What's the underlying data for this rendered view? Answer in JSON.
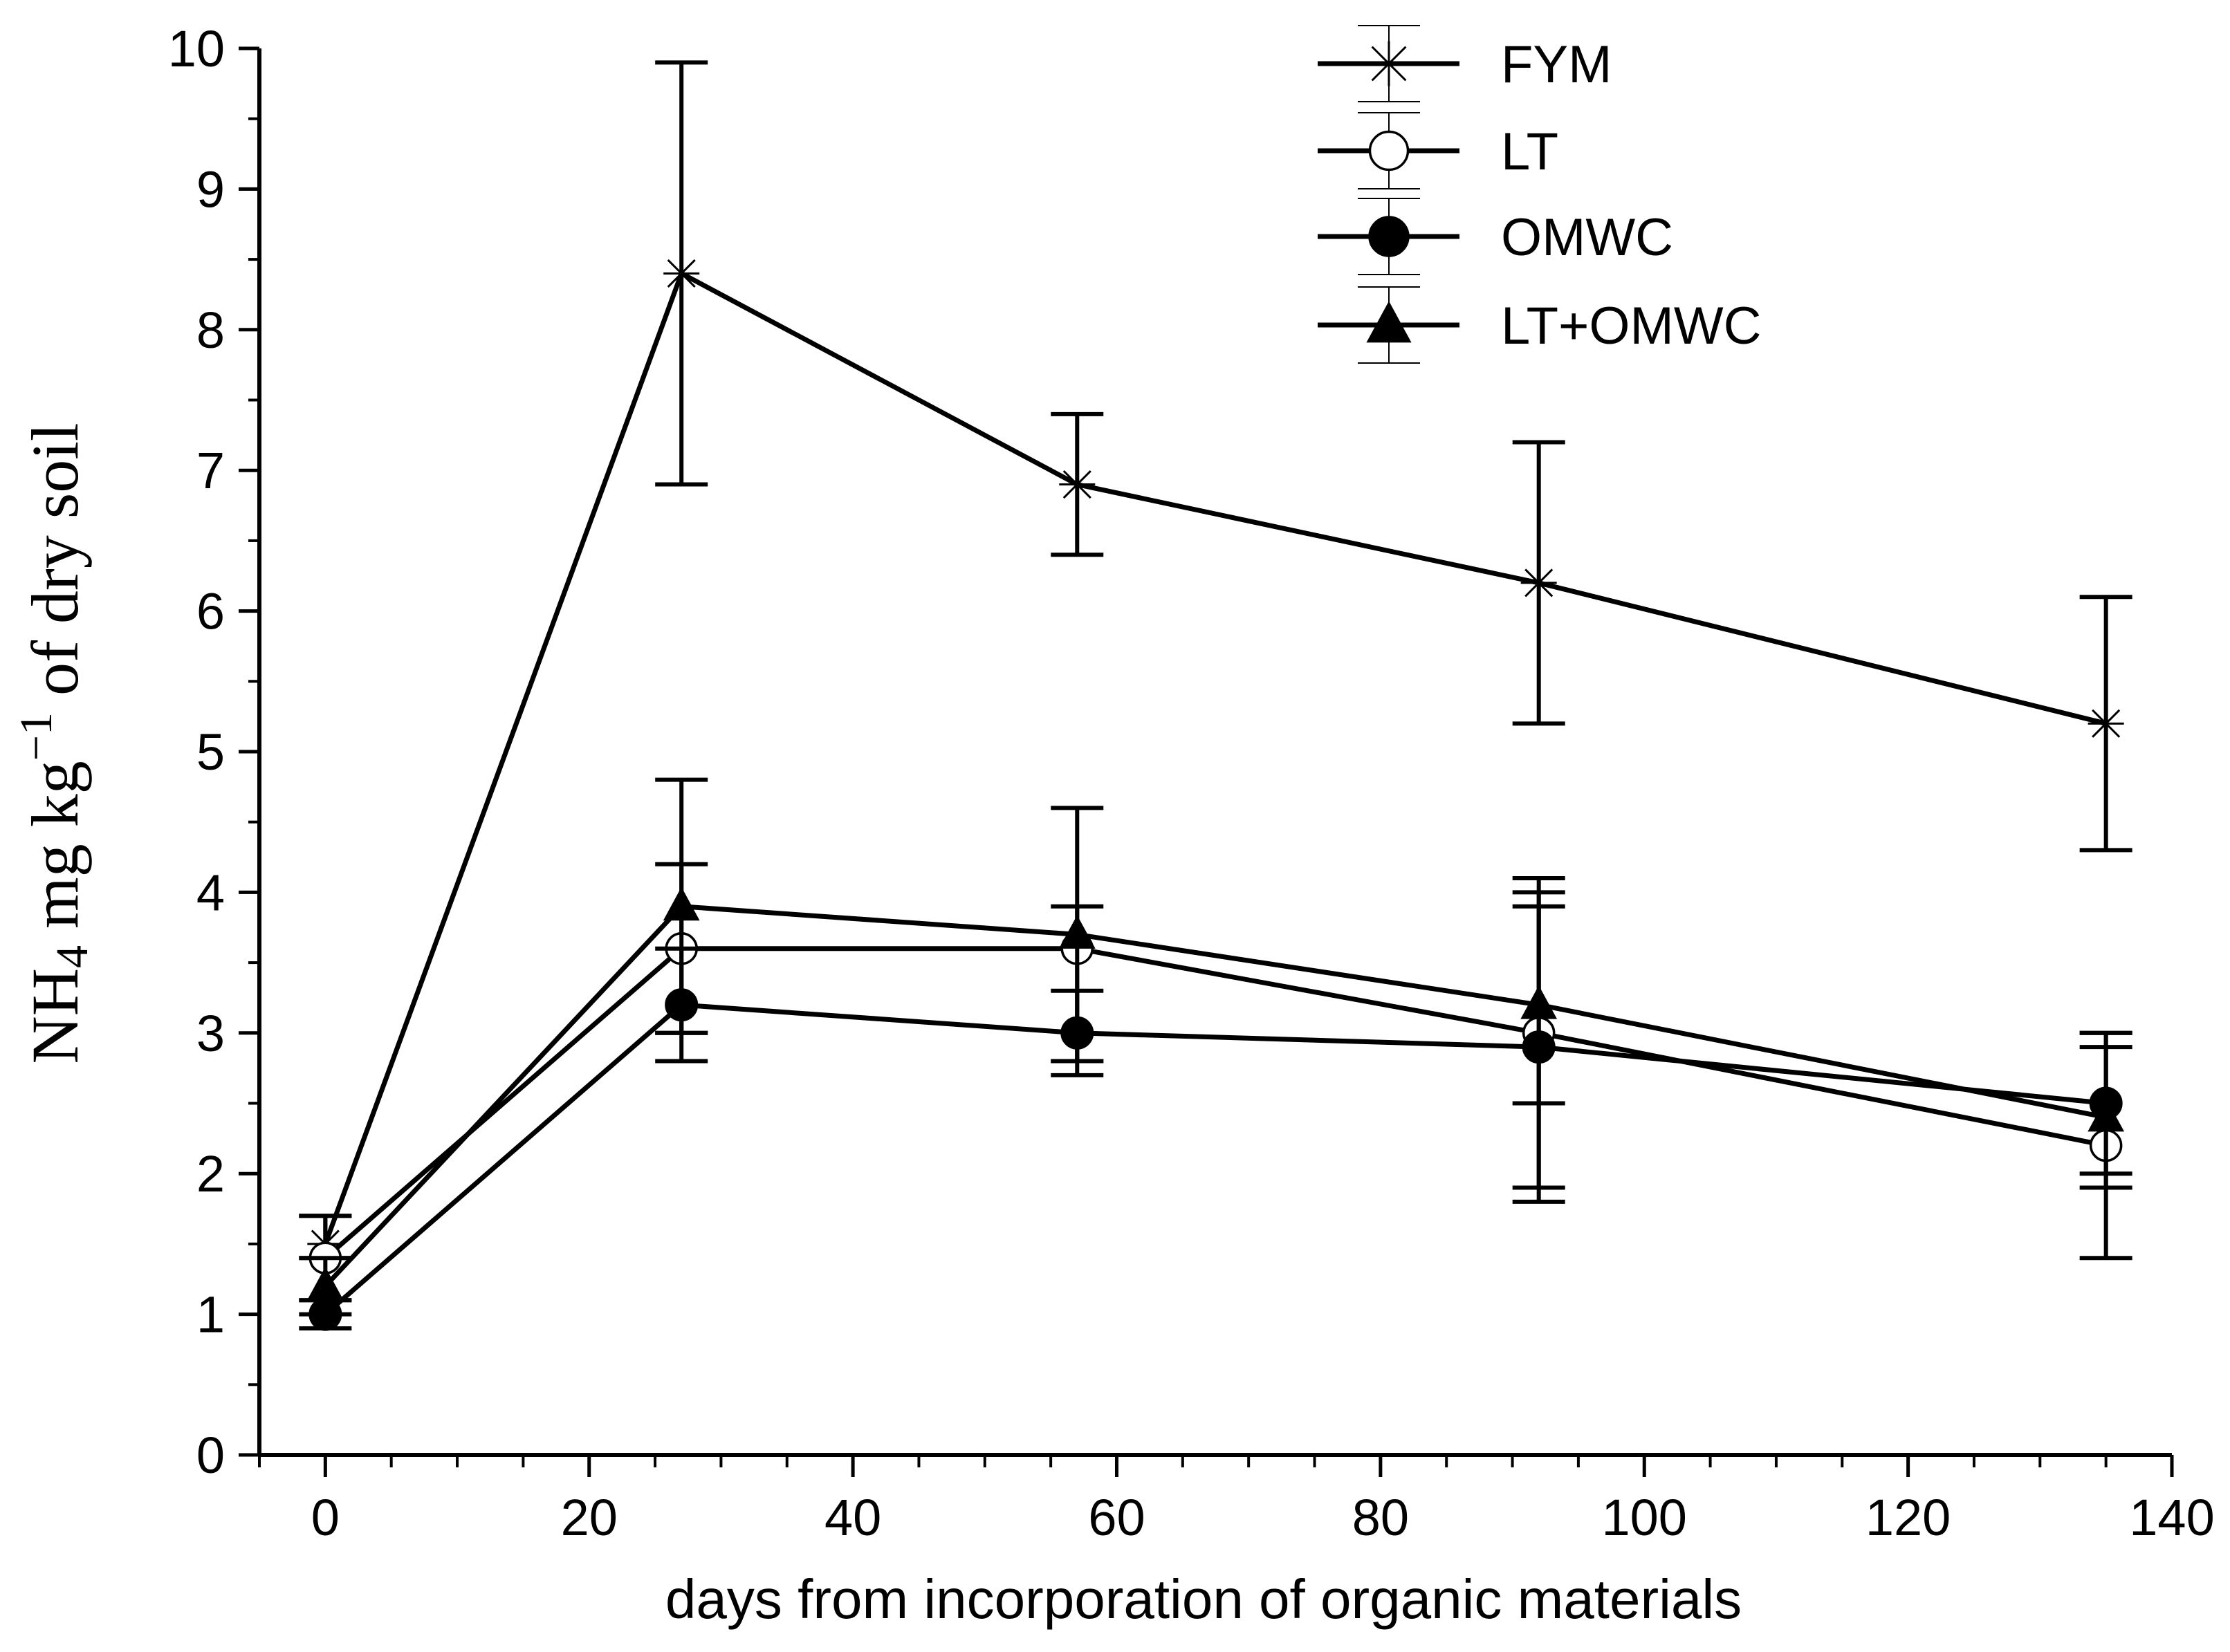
{
  "chart_data": {
    "type": "line",
    "title": "",
    "xlabel": "days from incorporation of organic materials",
    "ylabel": {
      "prefix": "NH",
      "subscript": "4",
      "middle": " mg kg",
      "superscript": "−1",
      "suffix": " of dry soil"
    },
    "xlim": [
      -5,
      140
    ],
    "ylim": [
      0,
      10
    ],
    "x_ticks": [
      0,
      20,
      40,
      60,
      80,
      100,
      120,
      140
    ],
    "y_ticks": [
      0,
      1,
      2,
      3,
      4,
      5,
      6,
      7,
      8,
      9,
      10
    ],
    "x_ticks_text": [
      "0",
      "20",
      "40",
      "60",
      "80",
      "100",
      "120",
      "140"
    ],
    "y_ticks_text": [
      "0",
      "1",
      "2",
      "3",
      "4",
      "5",
      "6",
      "7",
      "8",
      "9",
      "10"
    ],
    "legend_position": "top-right",
    "series": [
      {
        "name": "FYM",
        "marker": "star",
        "x": [
          0,
          27,
          57,
          92,
          135
        ],
        "values": [
          1.5,
          8.4,
          6.9,
          6.2,
          5.2
        ],
        "err_low": [
          1.4,
          6.9,
          6.4,
          5.2,
          4.3
        ],
        "err_high": [
          1.7,
          9.9,
          7.4,
          7.2,
          6.1
        ]
      },
      {
        "name": "LT",
        "marker": "open-circle",
        "x": [
          0,
          27,
          57,
          92,
          135
        ],
        "values": [
          1.4,
          3.6,
          3.6,
          3.0,
          2.2
        ],
        "err_low": [
          1.1,
          3.0,
          2.8,
          1.9,
          1.4
        ],
        "err_high": [
          1.7,
          4.2,
          3.9,
          4.1,
          3.0
        ]
      },
      {
        "name": "OMWC",
        "marker": "filled-circle",
        "x": [
          0,
          27,
          57,
          92,
          135
        ],
        "values": [
          1.0,
          3.2,
          3.0,
          2.9,
          2.5
        ],
        "err_low": [
          0.9,
          2.8,
          2.7,
          1.8,
          2.0
        ],
        "err_high": [
          1.1,
          3.6,
          3.3,
          4.0,
          3.0
        ]
      },
      {
        "name": "LT+OMWC",
        "marker": "filled-triangle",
        "x": [
          0,
          27,
          57,
          92,
          135
        ],
        "values": [
          1.2,
          3.9,
          3.7,
          3.2,
          2.4
        ],
        "err_low": [
          1.0,
          3.0,
          2.8,
          2.5,
          1.9
        ],
        "err_high": [
          1.4,
          4.8,
          4.6,
          3.9,
          2.9
        ]
      }
    ]
  }
}
